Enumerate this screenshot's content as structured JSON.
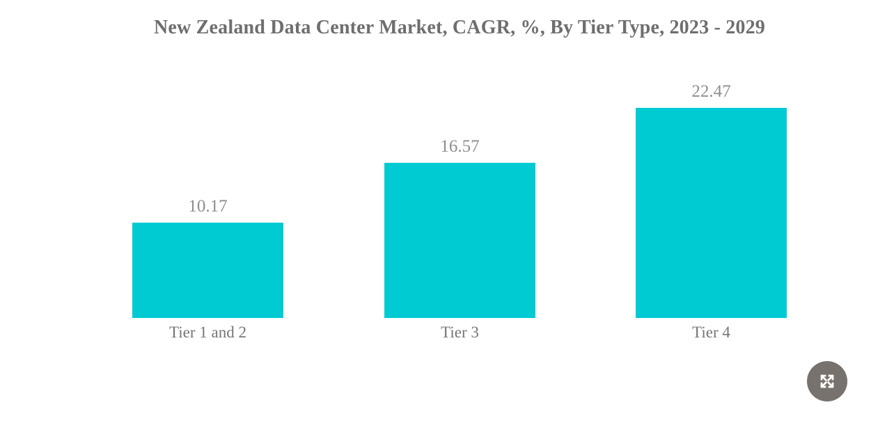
{
  "chart_data": {
    "type": "bar",
    "title": "New Zealand Data Center Market, CAGR, %, By Tier Type, 2023 - 2029",
    "categories": [
      "Tier 1 and 2",
      "Tier 3",
      "Tier 4"
    ],
    "values": [
      10.17,
      16.57,
      22.47
    ],
    "value_labels": [
      "10.17",
      "16.57",
      "22.47"
    ],
    "xlabel": "",
    "ylabel": "",
    "ylim": [
      0,
      24
    ],
    "grid": false,
    "legend": false,
    "axes_visible": false,
    "bar_color": "#00cbd3",
    "title_color": "#6e6e6e",
    "value_label_color": "#8e8e8e",
    "category_label_color": "#757575"
  },
  "controls": {
    "fullscreen_button_color": "#78726e",
    "fullscreen_icon_color": "#ffffff"
  }
}
